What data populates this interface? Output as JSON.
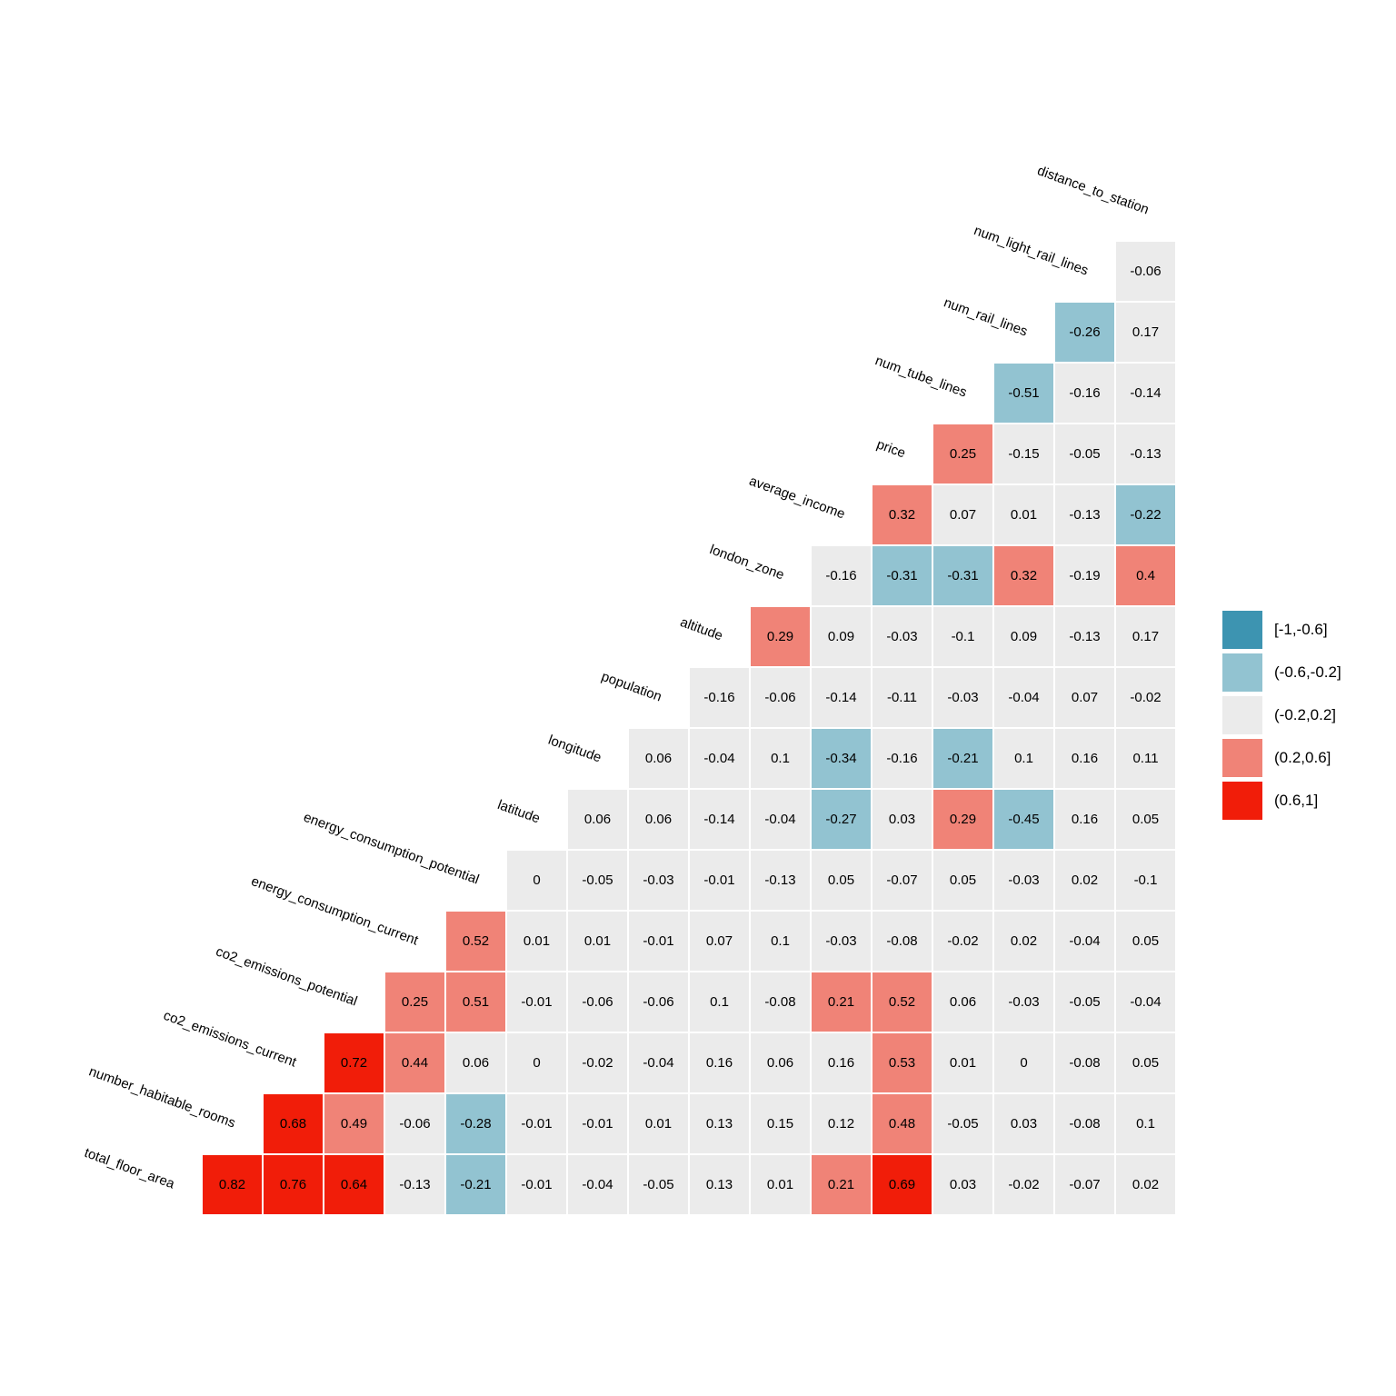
{
  "figure": {
    "background_color": "#ffffff",
    "title": "",
    "description": "Lower-triangular correlation matrix heatmap with variable names along the diagonal"
  },
  "chart_data": {
    "type": "heatmap",
    "subtype": "triangular_correlation_matrix",
    "title": "",
    "xlabel": "",
    "ylabel": "",
    "grid": false,
    "value_text_color": "#000000",
    "cell_border_color": "#ffffff",
    "diagonal_labels_bottomleft_to_topright": [
      "total_floor_area",
      "number_habitable_rooms",
      "co2_emissions_current",
      "co2_emissions_potential",
      "energy_consumption_current",
      "energy_consumption_potential",
      "latitude",
      "longitude",
      "population",
      "altitude",
      "london_zone",
      "average_income",
      "price",
      "num_tube_lines",
      "num_rail_lines",
      "num_light_rail_lines",
      "distance_to_station"
    ],
    "columns_left_to_right": [
      "number_habitable_rooms",
      "co2_emissions_current",
      "co2_emissions_potential",
      "energy_consumption_current",
      "energy_consumption_potential",
      "latitude",
      "longitude",
      "population",
      "altitude",
      "london_zone",
      "average_income",
      "price",
      "num_tube_lines",
      "num_rail_lines",
      "num_light_rail_lines",
      "distance_to_station"
    ],
    "rows_top_to_bottom_note": "Each row's values occupy the right-most columns of columns_left_to_right; values are correlations of row variable with each column variable.",
    "rows": [
      {
        "variable": "num_light_rail_lines",
        "values": [
          -0.06
        ]
      },
      {
        "variable": "num_rail_lines",
        "values": [
          -0.26,
          0.17
        ]
      },
      {
        "variable": "num_tube_lines",
        "values": [
          -0.51,
          -0.16,
          -0.14
        ]
      },
      {
        "variable": "price",
        "values": [
          0.25,
          -0.15,
          -0.05,
          -0.13
        ]
      },
      {
        "variable": "average_income",
        "values": [
          0.32,
          0.07,
          0.01,
          -0.13,
          -0.22
        ]
      },
      {
        "variable": "london_zone",
        "values": [
          -0.16,
          -0.31,
          -0.31,
          0.32,
          -0.19,
          0.4
        ]
      },
      {
        "variable": "altitude",
        "values": [
          0.29,
          0.09,
          -0.03,
          -0.1,
          0.09,
          -0.13,
          0.17
        ]
      },
      {
        "variable": "population",
        "values": [
          -0.16,
          -0.06,
          -0.14,
          -0.11,
          -0.03,
          -0.04,
          0.07,
          -0.02
        ]
      },
      {
        "variable": "longitude",
        "values": [
          0.06,
          -0.04,
          0.1,
          -0.34,
          -0.16,
          -0.21,
          0.1,
          0.16,
          0.11
        ]
      },
      {
        "variable": "latitude",
        "values": [
          0.06,
          0.06,
          -0.14,
          -0.04,
          -0.27,
          0.03,
          0.29,
          -0.45,
          0.16,
          0.05
        ]
      },
      {
        "variable": "energy_consumption_potential",
        "values": [
          0,
          -0.05,
          -0.03,
          -0.01,
          -0.13,
          0.05,
          -0.07,
          0.05,
          -0.03,
          0.02,
          -0.1
        ]
      },
      {
        "variable": "energy_consumption_current",
        "values": [
          0.52,
          0.01,
          0.01,
          -0.01,
          0.07,
          0.1,
          -0.03,
          -0.08,
          -0.02,
          0.02,
          -0.04,
          0.05
        ]
      },
      {
        "variable": "co2_emissions_potential",
        "values": [
          0.25,
          0.51,
          -0.01,
          -0.06,
          -0.06,
          0.1,
          -0.08,
          0.21,
          0.52,
          0.06,
          -0.03,
          -0.05,
          -0.04
        ]
      },
      {
        "variable": "co2_emissions_current",
        "values": [
          0.72,
          0.44,
          0.06,
          0,
          -0.02,
          -0.04,
          0.16,
          0.06,
          0.16,
          0.53,
          0.01,
          0,
          -0.08,
          0.05
        ]
      },
      {
        "variable": "number_habitable_rooms",
        "values": [
          0.68,
          0.49,
          -0.06,
          -0.28,
          -0.01,
          -0.01,
          0.01,
          0.13,
          0.15,
          0.12,
          0.48,
          -0.05,
          0.03,
          -0.08,
          0.1
        ]
      },
      {
        "variable": "total_floor_area",
        "values": [
          0.82,
          0.76,
          0.64,
          -0.13,
          -0.21,
          -0.01,
          -0.04,
          -0.05,
          0.13,
          0.01,
          0.21,
          0.69,
          0.03,
          -0.02,
          -0.07,
          0.02
        ]
      }
    ],
    "legend": {
      "position": "right",
      "thresholds": [
        -1,
        -0.6,
        -0.2,
        0.2,
        0.6,
        1
      ],
      "bins": [
        {
          "label": "[-1,-0.6]",
          "color": "#3d94b1"
        },
        {
          "label": "(-0.6,-0.2]",
          "color": "#92c3d1"
        },
        {
          "label": "(-0.2,0.2]",
          "color": "#ebebeb"
        },
        {
          "label": "(0.2,0.6]",
          "color": "#f08377"
        },
        {
          "label": "(0.6,1]",
          "color": "#f11d09"
        }
      ]
    }
  }
}
